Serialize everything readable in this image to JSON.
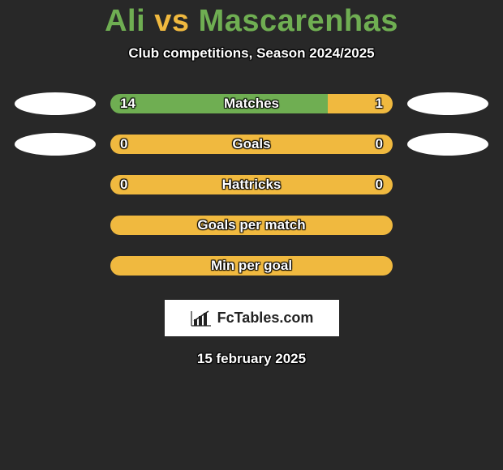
{
  "background_color": "#282828",
  "title": {
    "player1": "Ali",
    "vs": "vs",
    "player2": "Mascarenhas",
    "p1_color": "#6fae52",
    "vs_color": "#f0b93f",
    "p2_color": "#6fae52",
    "fontsize": 38
  },
  "subtitle": {
    "text": "Club competitions, Season 2024/2025",
    "color": "#ffffff",
    "fontsize": 17
  },
  "bars": {
    "track_width": 348,
    "track_height": 24,
    "border_radius": 12,
    "left_color": "#6fae52",
    "right_color": "#f0b93f",
    "full_color": "#f0b93f",
    "label_color": "#ffffff",
    "label_fontsize": 17,
    "val_fontsize": 17
  },
  "ellipse": {
    "width": 100,
    "height": 28,
    "color": "#ffffff"
  },
  "rows": [
    {
      "label": "Matches",
      "left_val": "14",
      "right_val": "1",
      "left_pct": 77,
      "right_pct": 23,
      "show_ellipse": true,
      "show_vals": true
    },
    {
      "label": "Goals",
      "left_val": "0",
      "right_val": "0",
      "left_pct": 0,
      "right_pct": 0,
      "full_fill": true,
      "show_ellipse": true,
      "show_vals": true
    },
    {
      "label": "Hattricks",
      "left_val": "0",
      "right_val": "0",
      "left_pct": 0,
      "right_pct": 0,
      "full_fill": true,
      "show_ellipse": false,
      "show_vals": true
    },
    {
      "label": "Goals per match",
      "left_val": "",
      "right_val": "",
      "left_pct": 0,
      "right_pct": 0,
      "full_fill": true,
      "show_ellipse": false,
      "show_vals": false
    },
    {
      "label": "Min per goal",
      "left_val": "",
      "right_val": "",
      "left_pct": 0,
      "right_pct": 0,
      "full_fill": true,
      "show_ellipse": false,
      "show_vals": false
    }
  ],
  "logo": {
    "text": "FcTables.com",
    "box_bg": "#ffffff",
    "text_color": "#222222",
    "fontsize": 18
  },
  "date": {
    "text": "15 february 2025",
    "color": "#ffffff",
    "fontsize": 17
  }
}
